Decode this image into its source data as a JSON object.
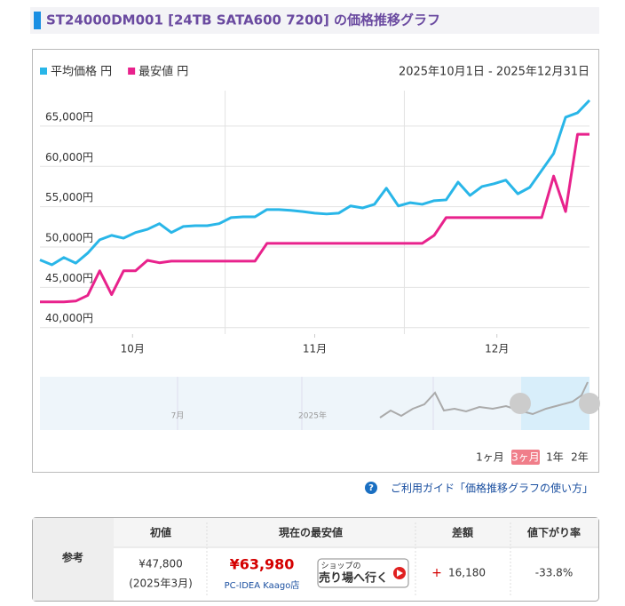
{
  "header": {
    "title": "ST24000DM001 [24TB SATA600 7200] の価格推移グラフ"
  },
  "chart_data": {
    "type": "line",
    "date_range": "2025年10月1日 - 2025年12月31日",
    "x": [
      0,
      2,
      4,
      6,
      8,
      10,
      12,
      14,
      16,
      18,
      20,
      22,
      24,
      26,
      28,
      30,
      32,
      34,
      36,
      38,
      40,
      42,
      44,
      46,
      48,
      50,
      52,
      54,
      56,
      58,
      60,
      62,
      64,
      66,
      68,
      70,
      72,
      74,
      76,
      78,
      80,
      82,
      84,
      86,
      88,
      90,
      92
    ],
    "series": [
      {
        "name": "平均価格 円",
        "color": "#29b6e8",
        "values": [
          48400,
          47800,
          48700,
          48000,
          49250,
          50900,
          51450,
          51100,
          51800,
          52200,
          52900,
          51800,
          52550,
          52650,
          52650,
          52900,
          53650,
          53750,
          53750,
          54650,
          54650,
          54550,
          54400,
          54200,
          54100,
          54200,
          55100,
          54850,
          55300,
          57300,
          55100,
          55500,
          55300,
          55750,
          55850,
          58050,
          56400,
          57500,
          57850,
          58300,
          56600,
          57400,
          59500,
          61600,
          66100,
          66650,
          68200
        ]
      },
      {
        "name": "最安値 円",
        "color": "#e8228c",
        "values": [
          43200,
          43200,
          43200,
          43300,
          44000,
          47050,
          44100,
          47050,
          47050,
          48350,
          48050,
          48250,
          48250,
          48250,
          48250,
          48250,
          48250,
          48250,
          48250,
          50450,
          50450,
          50450,
          50450,
          50450,
          50450,
          50450,
          50450,
          50450,
          50450,
          50450,
          50450,
          50450,
          50450,
          51450,
          53650,
          53650,
          53650,
          53650,
          53650,
          53650,
          53650,
          53650,
          53650,
          58800,
          54400,
          63980,
          63980
        ]
      }
    ],
    "xlim": [
      0,
      92
    ],
    "xticks": [
      {
        "value": 15.5,
        "label": "10月"
      },
      {
        "value": 46,
        "label": "11月"
      },
      {
        "value": 76.5,
        "label": "12月"
      }
    ],
    "xgrid": [
      31,
      61
    ],
    "ylim": [
      39200,
      69400
    ],
    "yticks": [
      {
        "value": 40000,
        "label": "40,000円"
      },
      {
        "value": 45000,
        "label": "45,000円"
      },
      {
        "value": 50000,
        "label": "50,000円"
      },
      {
        "value": 55000,
        "label": "55,000円"
      },
      {
        "value": 60000,
        "label": "60,000円"
      },
      {
        "value": 65000,
        "label": "65,000円"
      }
    ],
    "grid": true,
    "legend": "top-left"
  },
  "navigator": {
    "labels": [
      "7月",
      "2025年"
    ],
    "ranges": [
      "1ヶ月",
      "3ヶ月",
      "1年",
      "2年"
    ],
    "selected": 1
  },
  "guide": "ご利用ガイド「価格推移グラフの使い方」",
  "table": {
    "row_header": "参考",
    "headers": [
      "初値",
      "現在の最安値",
      "差額",
      "値下がり率"
    ],
    "first_price": "¥47,800",
    "first_date": "(2025年3月)",
    "lowest_price": "¥63,980",
    "shop": "PC-IDEA Kaago店",
    "shop_button": [
      "ショップの",
      "売り場へ行く"
    ],
    "difference_sign": "+",
    "difference": "16,180",
    "drop_rate": "-33.8%"
  }
}
